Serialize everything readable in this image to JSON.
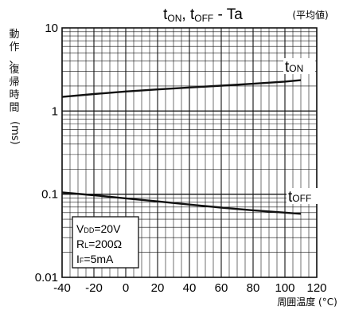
{
  "chart_data": {
    "type": "line",
    "title": "tₒₙ, tₒₒₒ - Ta",
    "title_parts": {
      "t1": "t",
      "s1": "ON",
      "sep": ", t",
      "s2": "OFF",
      "rest": " - Ta"
    },
    "subtitle": "(平均値)",
    "xlabel": "周囲温度 (°C)",
    "ylabel_chars": [
      "動",
      "作",
      "、",
      "復",
      "帰",
      "時",
      "間"
    ],
    "ylabel_unit": "(ms)",
    "xlim": [
      -40,
      120
    ],
    "ylim": [
      0.01,
      10
    ],
    "y_scale": "log",
    "grid": true,
    "x_ticks": [
      "-40",
      "-20",
      "0",
      "20",
      "40",
      "60",
      "80",
      "100",
      "120"
    ],
    "y_ticks": [
      "10",
      "1",
      "0.1",
      "0.01"
    ],
    "series": [
      {
        "name": "tON",
        "label_t": "t",
        "label_sub": "ON",
        "x": [
          -40,
          -20,
          0,
          20,
          40,
          60,
          80,
          100,
          110
        ],
        "y": [
          1.48,
          1.6,
          1.72,
          1.82,
          1.92,
          2.02,
          2.13,
          2.26,
          2.35
        ]
      },
      {
        "name": "tOFF",
        "label_t": "t",
        "label_sub": "OFF",
        "x": [
          -40,
          -20,
          0,
          20,
          40,
          60,
          80,
          100,
          110
        ],
        "y": [
          0.105,
          0.097,
          0.089,
          0.082,
          0.075,
          0.069,
          0.064,
          0.06,
          0.058
        ]
      }
    ],
    "conditions": {
      "vdd": "V",
      "vdd_sub": "DD",
      "vdd_val": "=20V",
      "rl": "R",
      "rl_sub": "L",
      "rl_val": "=200Ω",
      "if": "I",
      "if_sub": "F",
      "if_val": "=5mA"
    },
    "line_color": "#111111"
  }
}
